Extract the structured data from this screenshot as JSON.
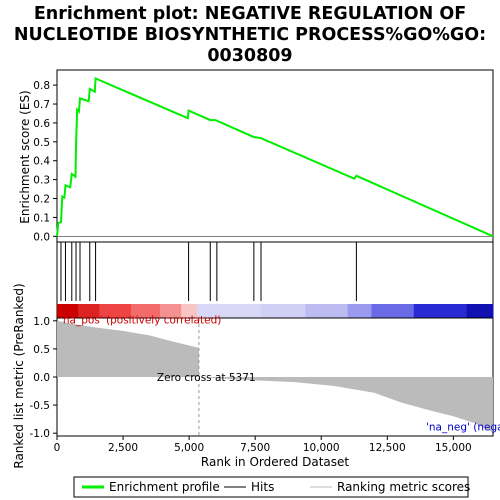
{
  "chart_data": {
    "type": "line",
    "title_lines": [
      "Enrichment plot: NEGATIVE REGULATION OF",
      "NUCLEOTIDE BIOSYNTHETIC PROCESS%GO%GO:",
      "0030809"
    ],
    "top_panel": {
      "ylabel": "Enrichment score (ES)",
      "ylim": [
        -0.03,
        0.88
      ],
      "yticks": [
        0.0,
        0.1,
        0.2,
        0.3,
        0.4,
        0.5,
        0.6,
        0.7,
        0.8
      ],
      "ytick_labels": [
        "0.0",
        "0.1",
        "0.2",
        "0.3",
        "0.4",
        "0.5",
        "0.6",
        "0.7",
        "0.8"
      ],
      "series": [
        {
          "name": "Enrichment profile",
          "color": "#00ee00",
          "points": [
            [
              0,
              0.0
            ],
            [
              50,
              0.07
            ],
            [
              150,
              0.075
            ],
            [
              200,
              0.21
            ],
            [
              280,
              0.205
            ],
            [
              320,
              0.27
            ],
            [
              500,
              0.26
            ],
            [
              560,
              0.33
            ],
            [
              700,
              0.315
            ],
            [
              720,
              0.47
            ],
            [
              730,
              0.53
            ],
            [
              745,
              0.59
            ],
            [
              760,
              0.67
            ],
            [
              830,
              0.66
            ],
            [
              870,
              0.73
            ],
            [
              1200,
              0.715
            ],
            [
              1240,
              0.78
            ],
            [
              1430,
              0.765
            ],
            [
              1460,
              0.835
            ],
            [
              4950,
              0.625
            ],
            [
              4980,
              0.665
            ],
            [
              5800,
              0.615
            ],
            [
              6000,
              0.615
            ],
            [
              7450,
              0.525
            ],
            [
              7700,
              0.52
            ],
            [
              11250,
              0.305
            ],
            [
              11330,
              0.32
            ],
            [
              16500,
              0.0
            ]
          ]
        }
      ]
    },
    "hits_panel": {
      "hits": [
        150,
        320,
        560,
        720,
        870,
        1240,
        1460,
        4980,
        5800,
        6050,
        7450,
        7720,
        11330
      ]
    },
    "bottom_panel": {
      "ylabel": "Ranked list metric (PreRanked)",
      "xlabel": "Rank in Ordered Dataset",
      "xlim": [
        0,
        16500
      ],
      "ylim": [
        -1.05,
        1.05
      ],
      "xticks": [
        0,
        2500,
        5000,
        7500,
        10000,
        12500,
        15000
      ],
      "xtick_labels": [
        "0",
        "2,500",
        "5,000",
        "7,500",
        "10,000",
        "12,500",
        "15,000"
      ],
      "yticks": [
        1.0,
        0.5,
        0.0,
        -0.5,
        -1.0
      ],
      "ytick_labels": [
        "1.0",
        "0.5",
        "0.0",
        "-0.5",
        "-1.0"
      ],
      "metric_curve": [
        [
          0,
          1.0
        ],
        [
          300,
          0.97
        ],
        [
          800,
          0.93
        ],
        [
          1500,
          0.88
        ],
        [
          2500,
          0.82
        ],
        [
          3500,
          0.74
        ],
        [
          4300,
          0.64
        ],
        [
          5000,
          0.56
        ],
        [
          5371,
          0.52
        ],
        [
          5372,
          0.0
        ],
        [
          6000,
          -0.02
        ],
        [
          7500,
          -0.06
        ],
        [
          9000,
          -0.09
        ],
        [
          10500,
          -0.16
        ],
        [
          12000,
          -0.28
        ],
        [
          13000,
          -0.45
        ],
        [
          14000,
          -0.58
        ],
        [
          15000,
          -0.7
        ],
        [
          15800,
          -0.82
        ],
        [
          16500,
          -0.98
        ]
      ],
      "zero_cross": 5371,
      "annotations": {
        "positive": "'na_pos' (positively correlated)",
        "zero_cross": "Zero cross at 5371",
        "negative": "'na_neg' (negatively correlated)"
      }
    },
    "color_bar": {
      "segments": [
        {
          "end": 800,
          "color": "#cc0000"
        },
        {
          "end": 1600,
          "color": "#dd2222"
        },
        {
          "end": 2800,
          "color": "#ee4444"
        },
        {
          "end": 3900,
          "color": "#f26a6a"
        },
        {
          "end": 4700,
          "color": "#f59090"
        },
        {
          "end": 5300,
          "color": "#f9c4c4"
        },
        {
          "end": 7700,
          "color": "#d8d8f6"
        },
        {
          "end": 9400,
          "color": "#d0d0f4"
        },
        {
          "end": 11000,
          "color": "#bcbcf0"
        },
        {
          "end": 11900,
          "color": "#9a9aee"
        },
        {
          "end": 13500,
          "color": "#6a6ae6"
        },
        {
          "end": 15500,
          "color": "#2a2ad2"
        },
        {
          "end": 16500,
          "color": "#1111b2"
        }
      ]
    },
    "legend": {
      "items": [
        {
          "label": "Enrichment profile",
          "color": "#00ee00"
        },
        {
          "label": "Hits",
          "color": "#000000"
        },
        {
          "label": "Ranking metric scores",
          "color": "#bbbbbb"
        }
      ]
    }
  }
}
